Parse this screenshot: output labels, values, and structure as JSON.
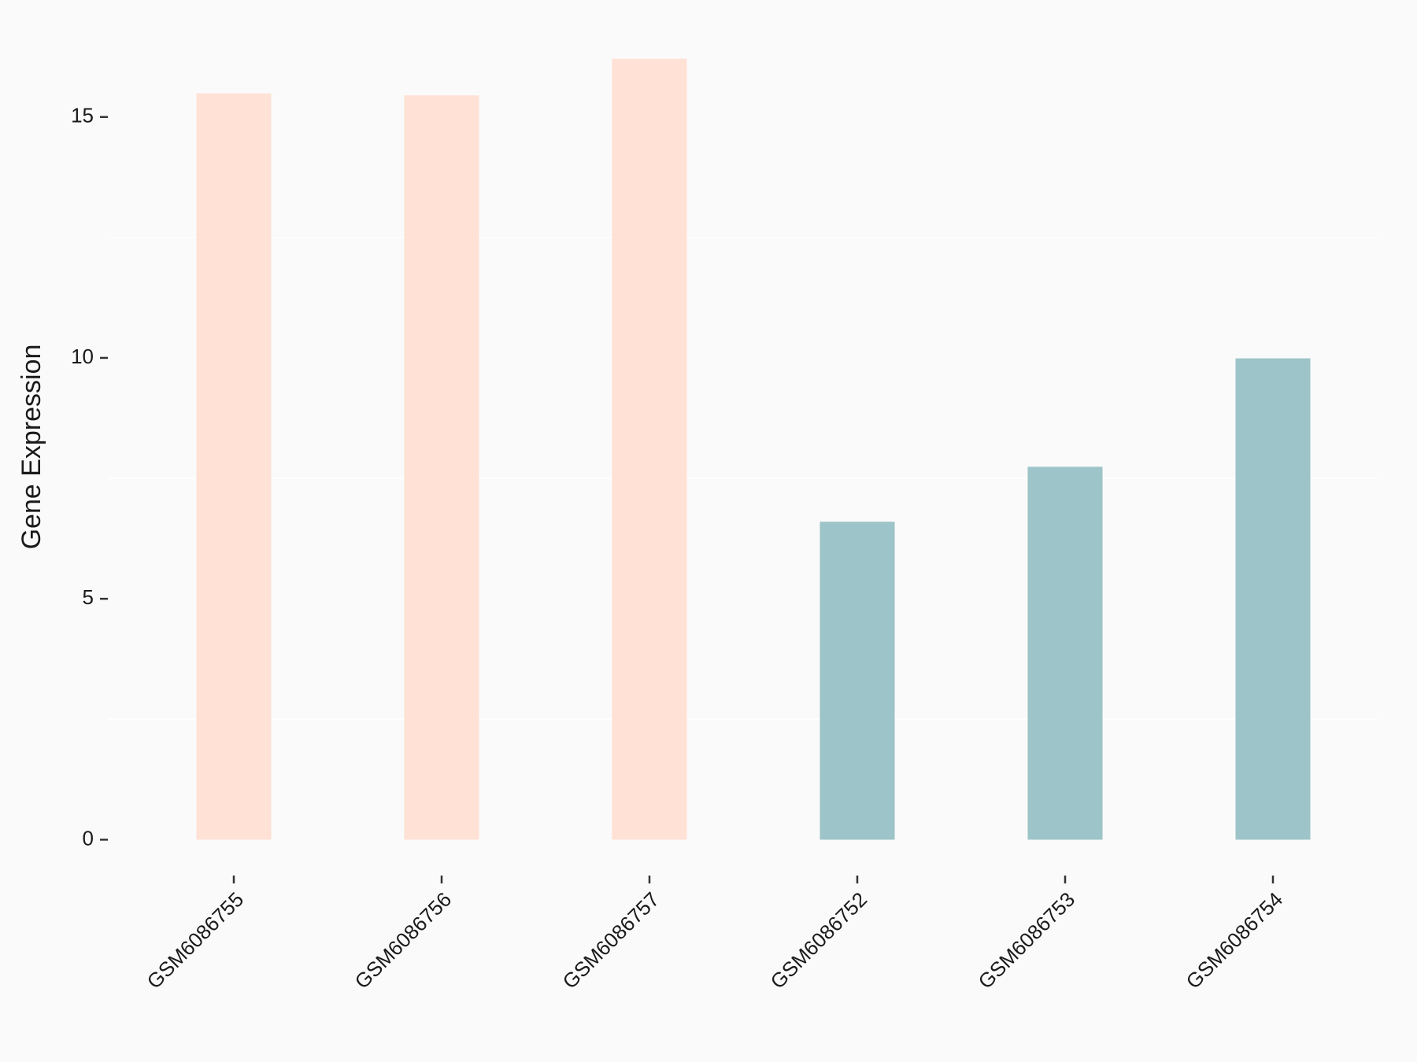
{
  "chart_data": {
    "type": "bar",
    "y_label": "Gene Expression",
    "categories": [
      "GSM6086755",
      "GSM6086756",
      "GSM6086757",
      "GSM6086752",
      "GSM6086753",
      "GSM6086754"
    ],
    "values": [
      15.49,
      15.45,
      16.21,
      6.6,
      7.74,
      9.99
    ],
    "colors": [
      "#ffe1d6",
      "#ffe1d6",
      "#ffe1d6",
      "#9dc4c8",
      "#9dc4c8",
      "#9dc4c8"
    ],
    "ylim": [
      -0.81,
      17.02
    ],
    "yticks": [
      0,
      5,
      10,
      15
    ],
    "minor_grid": [
      2.5,
      7.5,
      12.5
    ]
  }
}
